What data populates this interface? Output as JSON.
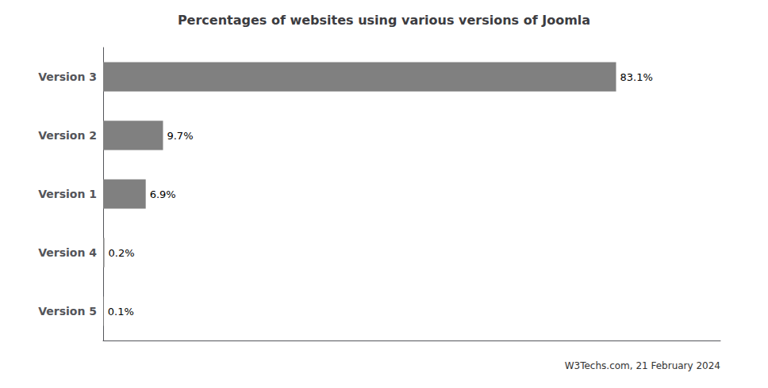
{
  "chart_data": {
    "type": "bar",
    "orientation": "horizontal",
    "title": "Percentages of websites using various versions of Joomla",
    "annotations": [
      "W3Techs.com, 21 February 2024"
    ],
    "categories": [
      "Version 3",
      "Version 2",
      "Version 1",
      "Version 4",
      "Version 5"
    ],
    "values": [
      83.1,
      9.7,
      6.9,
      0.2,
      0.1
    ],
    "value_labels": [
      "83.1%",
      "9.7%",
      "6.9%",
      "0.2%",
      "0.1%"
    ],
    "data_labels": true,
    "color": "#808080",
    "xlim": [
      0,
      100
    ],
    "tick_labels": "y",
    "grid": false
  }
}
